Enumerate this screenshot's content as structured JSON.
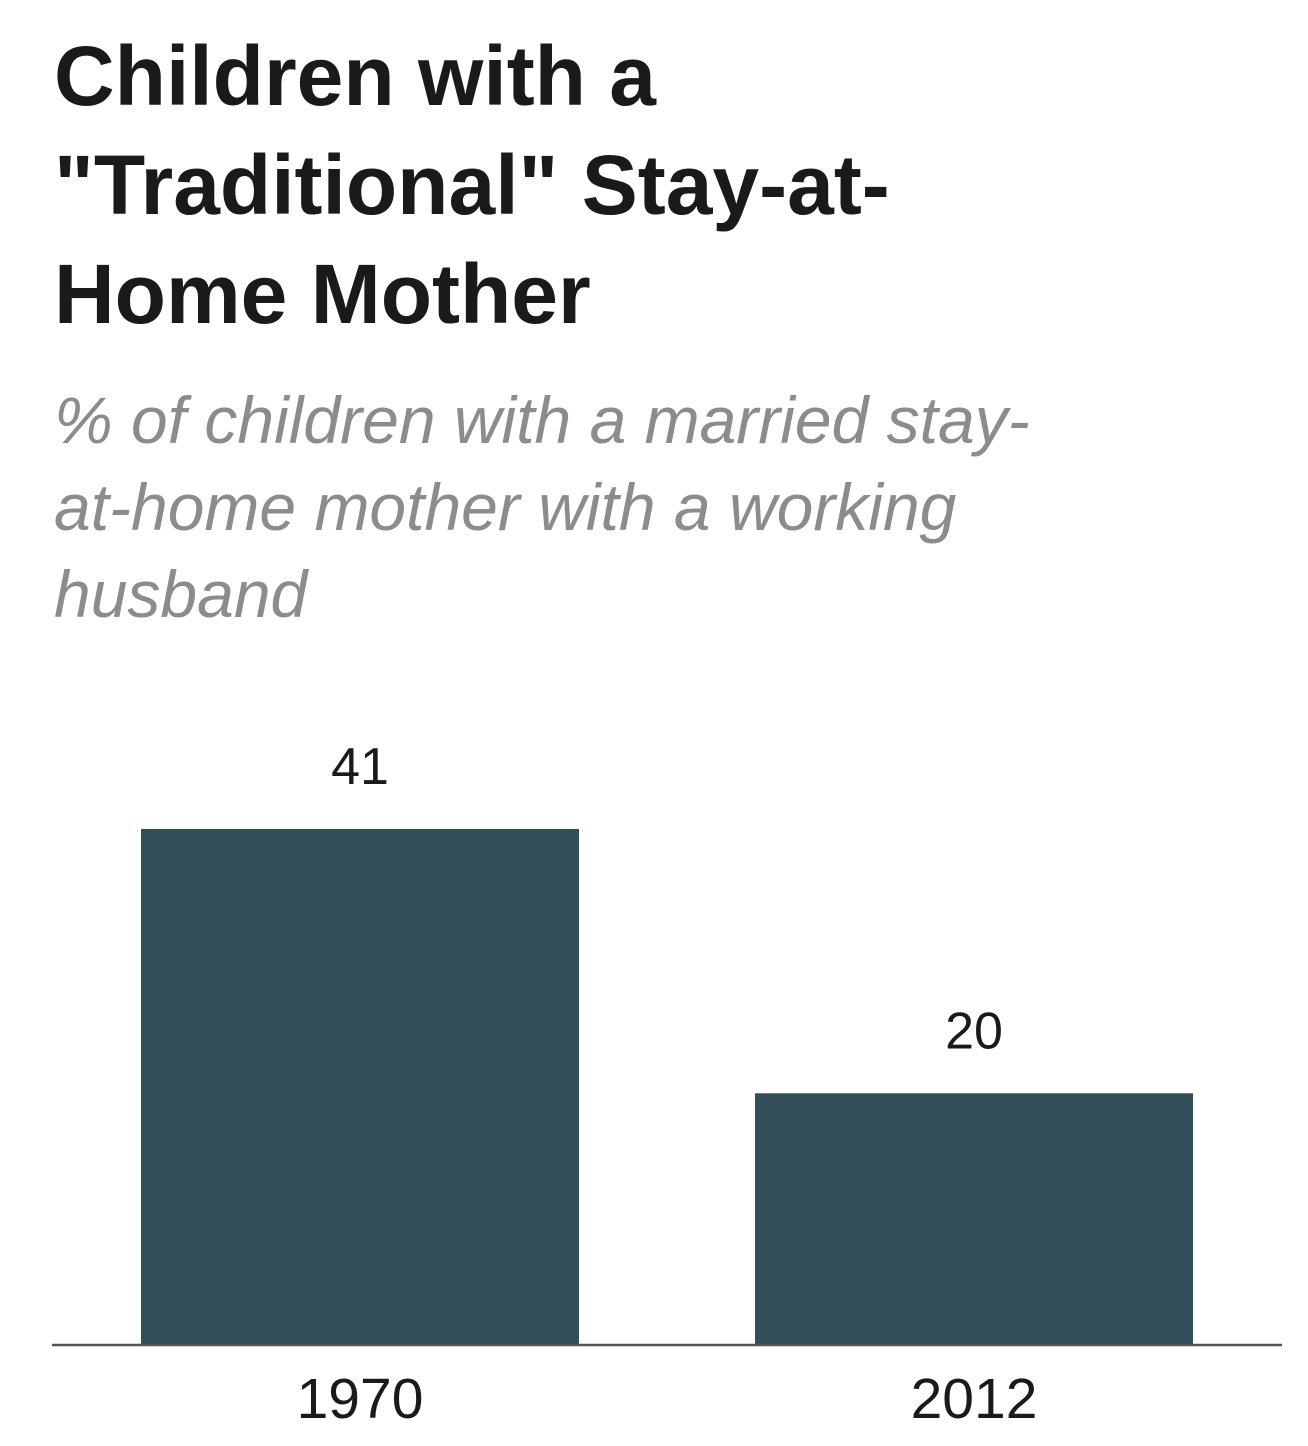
{
  "chart_data": {
    "type": "bar",
    "title": "Children with a \"Traditional\" Stay-at-Home Mother",
    "subtitle": "% of children with a married stay-at-home mother with a working husband",
    "categories": [
      "1970",
      "2012"
    ],
    "values": [
      41,
      20
    ],
    "data_labels": [
      "41",
      "20"
    ],
    "xlabel": "",
    "ylabel": "",
    "ylim": [
      0,
      41
    ],
    "grid": false,
    "legend": "none",
    "colors": {
      "bar": "#324f59",
      "axis": "#555555"
    }
  }
}
